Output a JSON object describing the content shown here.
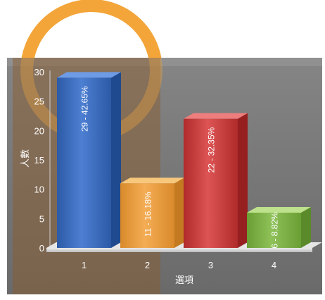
{
  "chart_data": {
    "type": "bar",
    "title": "",
    "xlabel": "選項",
    "ylabel": "人數",
    "categories": [
      "1",
      "2",
      "3",
      "4"
    ],
    "values": [
      29,
      11,
      22,
      6
    ],
    "data_labels": [
      "29 - 42.65%",
      "11 - 16.18%",
      "22 - 32.35%",
      "6 - 8.82%"
    ],
    "yticks": [
      "0",
      "5",
      "10",
      "15",
      "20",
      "25",
      "30"
    ],
    "ylim": [
      0,
      30
    ],
    "grid": false,
    "legend": "none",
    "bar_styles": [
      {
        "top": "#6e9be6",
        "front_dark": "#2c5aa6",
        "front_light": "#4d7fd2",
        "side": "#1f4a8f"
      },
      {
        "top": "#f7c77c",
        "front_dark": "#d98a2b",
        "front_light": "#f4ad55",
        "side": "#c47a20"
      },
      {
        "top": "#ee7e7e",
        "front_dark": "#b02b2b",
        "front_light": "#dd5454",
        "side": "#962020"
      },
      {
        "top": "#bde18c",
        "front_dark": "#6a9f34",
        "front_light": "#8fc159",
        "side": "#5a8a2a"
      }
    ],
    "colors": {
      "plot_background": "#7d7d7d",
      "axis_text": "#ffffff",
      "floor": "#d6d6d6",
      "background_ring": "#f0a030",
      "overlay_band": "#8b5a2b"
    }
  }
}
